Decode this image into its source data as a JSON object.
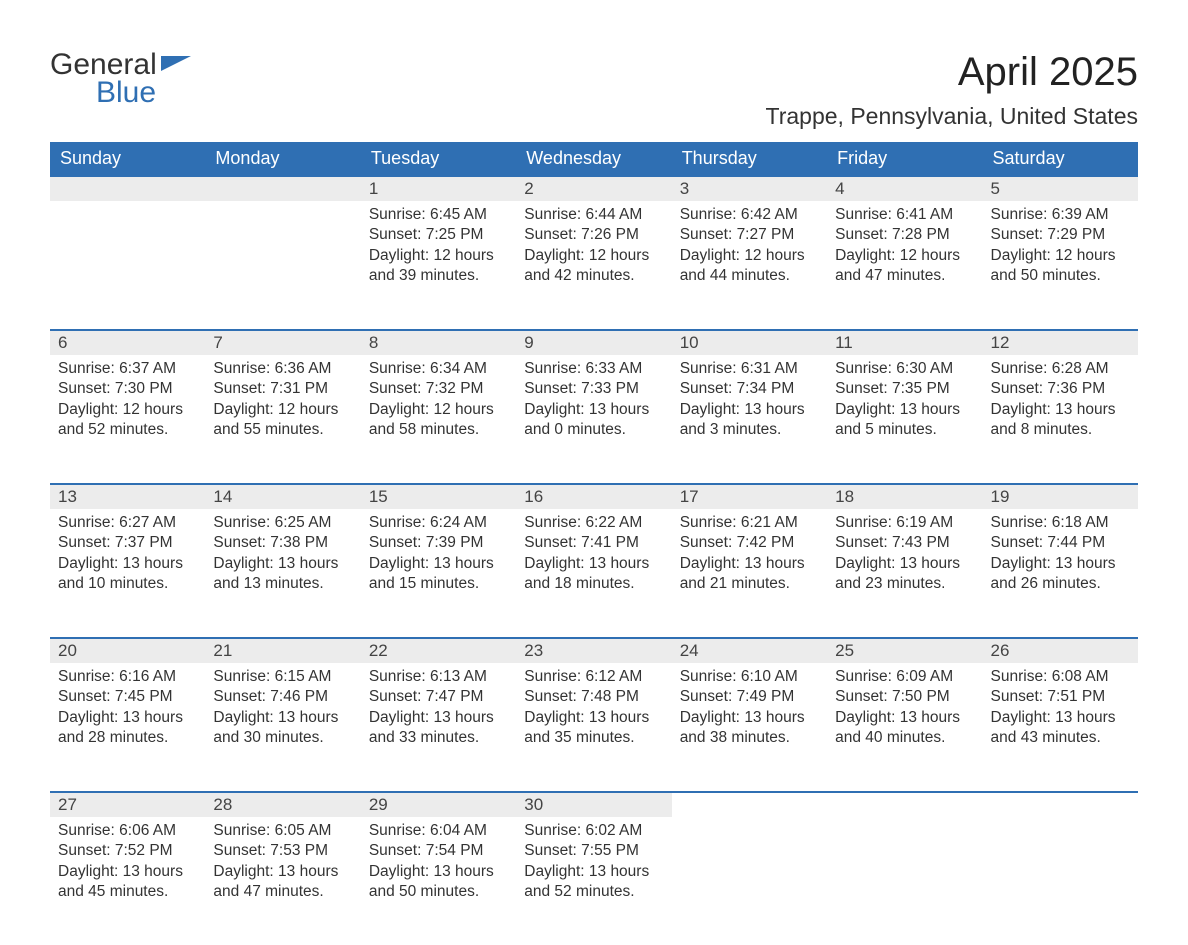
{
  "logo": {
    "word1": "General",
    "word2": "Blue"
  },
  "title": "April 2025",
  "location": "Trappe, Pennsylvania, United States",
  "weekdays": [
    "Sunday",
    "Monday",
    "Tuesday",
    "Wednesday",
    "Thursday",
    "Friday",
    "Saturday"
  ],
  "colors": {
    "header_bg": "#2f6fb3",
    "header_fg": "#ffffff",
    "daynum_bg": "#ececec",
    "row_border": "#2f6fb3",
    "text": "#333333",
    "background": "#ffffff"
  },
  "font_sizes": {
    "main_title": 40,
    "subtitle": 23,
    "weekday_header": 18,
    "daynum": 17,
    "body": 15.5,
    "logo": 30
  },
  "weeks": [
    [
      null,
      null,
      {
        "day": "1",
        "sunrise": "6:45 AM",
        "sunset": "7:25 PM",
        "daylight": "12 hours and 39 minutes."
      },
      {
        "day": "2",
        "sunrise": "6:44 AM",
        "sunset": "7:26 PM",
        "daylight": "12 hours and 42 minutes."
      },
      {
        "day": "3",
        "sunrise": "6:42 AM",
        "sunset": "7:27 PM",
        "daylight": "12 hours and 44 minutes."
      },
      {
        "day": "4",
        "sunrise": "6:41 AM",
        "sunset": "7:28 PM",
        "daylight": "12 hours and 47 minutes."
      },
      {
        "day": "5",
        "sunrise": "6:39 AM",
        "sunset": "7:29 PM",
        "daylight": "12 hours and 50 minutes."
      }
    ],
    [
      {
        "day": "6",
        "sunrise": "6:37 AM",
        "sunset": "7:30 PM",
        "daylight": "12 hours and 52 minutes."
      },
      {
        "day": "7",
        "sunrise": "6:36 AM",
        "sunset": "7:31 PM",
        "daylight": "12 hours and 55 minutes."
      },
      {
        "day": "8",
        "sunrise": "6:34 AM",
        "sunset": "7:32 PM",
        "daylight": "12 hours and 58 minutes."
      },
      {
        "day": "9",
        "sunrise": "6:33 AM",
        "sunset": "7:33 PM",
        "daylight": "13 hours and 0 minutes."
      },
      {
        "day": "10",
        "sunrise": "6:31 AM",
        "sunset": "7:34 PM",
        "daylight": "13 hours and 3 minutes."
      },
      {
        "day": "11",
        "sunrise": "6:30 AM",
        "sunset": "7:35 PM",
        "daylight": "13 hours and 5 minutes."
      },
      {
        "day": "12",
        "sunrise": "6:28 AM",
        "sunset": "7:36 PM",
        "daylight": "13 hours and 8 minutes."
      }
    ],
    [
      {
        "day": "13",
        "sunrise": "6:27 AM",
        "sunset": "7:37 PM",
        "daylight": "13 hours and 10 minutes."
      },
      {
        "day": "14",
        "sunrise": "6:25 AM",
        "sunset": "7:38 PM",
        "daylight": "13 hours and 13 minutes."
      },
      {
        "day": "15",
        "sunrise": "6:24 AM",
        "sunset": "7:39 PM",
        "daylight": "13 hours and 15 minutes."
      },
      {
        "day": "16",
        "sunrise": "6:22 AM",
        "sunset": "7:41 PM",
        "daylight": "13 hours and 18 minutes."
      },
      {
        "day": "17",
        "sunrise": "6:21 AM",
        "sunset": "7:42 PM",
        "daylight": "13 hours and 21 minutes."
      },
      {
        "day": "18",
        "sunrise": "6:19 AM",
        "sunset": "7:43 PM",
        "daylight": "13 hours and 23 minutes."
      },
      {
        "day": "19",
        "sunrise": "6:18 AM",
        "sunset": "7:44 PM",
        "daylight": "13 hours and 26 minutes."
      }
    ],
    [
      {
        "day": "20",
        "sunrise": "6:16 AM",
        "sunset": "7:45 PM",
        "daylight": "13 hours and 28 minutes."
      },
      {
        "day": "21",
        "sunrise": "6:15 AM",
        "sunset": "7:46 PM",
        "daylight": "13 hours and 30 minutes."
      },
      {
        "day": "22",
        "sunrise": "6:13 AM",
        "sunset": "7:47 PM",
        "daylight": "13 hours and 33 minutes."
      },
      {
        "day": "23",
        "sunrise": "6:12 AM",
        "sunset": "7:48 PM",
        "daylight": "13 hours and 35 minutes."
      },
      {
        "day": "24",
        "sunrise": "6:10 AM",
        "sunset": "7:49 PM",
        "daylight": "13 hours and 38 minutes."
      },
      {
        "day": "25",
        "sunrise": "6:09 AM",
        "sunset": "7:50 PM",
        "daylight": "13 hours and 40 minutes."
      },
      {
        "day": "26",
        "sunrise": "6:08 AM",
        "sunset": "7:51 PM",
        "daylight": "13 hours and 43 minutes."
      }
    ],
    [
      {
        "day": "27",
        "sunrise": "6:06 AM",
        "sunset": "7:52 PM",
        "daylight": "13 hours and 45 minutes."
      },
      {
        "day": "28",
        "sunrise": "6:05 AM",
        "sunset": "7:53 PM",
        "daylight": "13 hours and 47 minutes."
      },
      {
        "day": "29",
        "sunrise": "6:04 AM",
        "sunset": "7:54 PM",
        "daylight": "13 hours and 50 minutes."
      },
      {
        "day": "30",
        "sunrise": "6:02 AM",
        "sunset": "7:55 PM",
        "daylight": "13 hours and 52 minutes."
      },
      null,
      null,
      null
    ]
  ],
  "labels": {
    "sunrise": "Sunrise: ",
    "sunset": "Sunset: ",
    "daylight": "Daylight: "
  }
}
